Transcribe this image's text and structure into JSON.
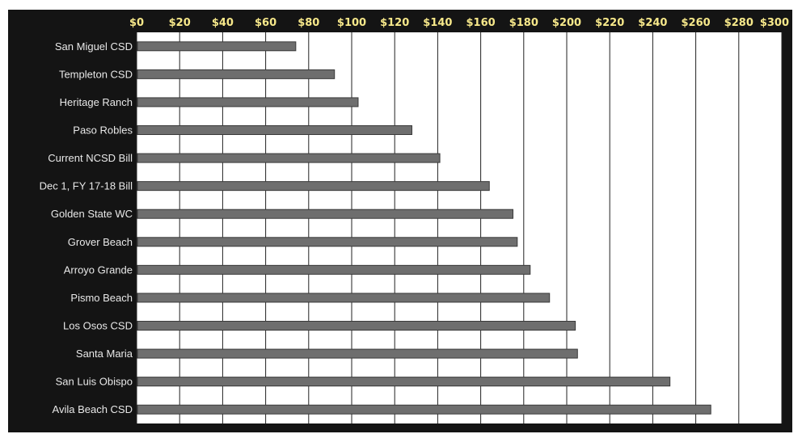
{
  "chart_data": {
    "type": "bar",
    "orientation": "horizontal",
    "categories": [
      "San Miguel CSD",
      "Templeton CSD",
      "Heritage Ranch",
      "Paso Robles",
      "Current NCSD Bill",
      "Dec 1, FY 17-18 Bill",
      "Golden State WC",
      "Grover Beach",
      "Arroyo Grande",
      "Pismo Beach",
      "Los Osos CSD",
      "Santa Maria",
      "San Luis Obispo",
      "Avila Beach CSD"
    ],
    "values": [
      74,
      92,
      103,
      128,
      141,
      164,
      175,
      177,
      183,
      192,
      204,
      205,
      248,
      267
    ],
    "x_ticks": [
      "$0",
      "$20",
      "$40",
      "$60",
      "$80",
      "$100",
      "$120",
      "$140",
      "$160",
      "$180",
      "$200",
      "$220",
      "$240",
      "$260",
      "$280",
      "$300"
    ],
    "xlim": [
      0,
      300
    ],
    "x_axis_position": "top",
    "grid": true,
    "legend": "none",
    "title": "",
    "xlabel": "",
    "ylabel": ""
  },
  "colors": {
    "background": "#141414",
    "plot_area": "#ffffff",
    "bar": "#6e6e6e",
    "bar_edge": "#3a3a3a",
    "gridline": "#222222",
    "tick_label": "#f7e88a",
    "category_label": "#e8e8e8"
  }
}
